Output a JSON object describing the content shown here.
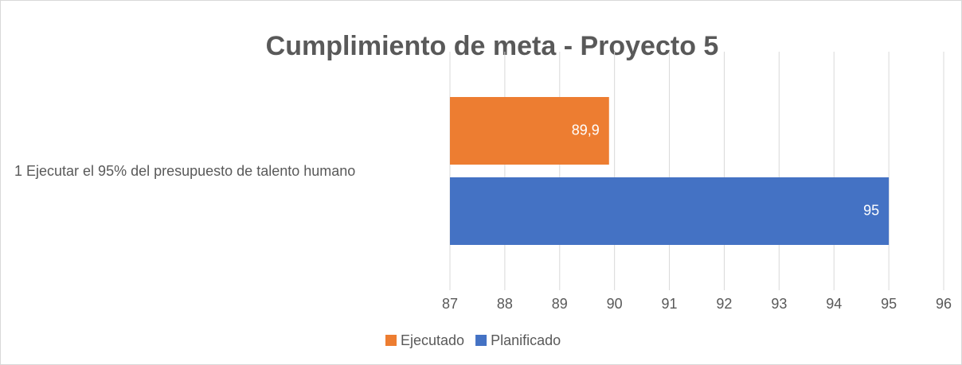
{
  "chart_data": {
    "type": "barh",
    "title": "Cumplimiento de meta - Proyecto 5",
    "categories": [
      "1 Ejecutar el 95% del presupuesto de talento humano"
    ],
    "series": [
      {
        "name": "Ejecutado",
        "color": "#ed7d31",
        "values": [
          89.9
        ],
        "value_labels": [
          "89,9"
        ]
      },
      {
        "name": "Planificado",
        "color": "#4472c4",
        "values": [
          95
        ],
        "value_labels": [
          "95"
        ]
      }
    ],
    "xlim": [
      87,
      96
    ],
    "xticks": [
      87,
      88,
      89,
      90,
      91,
      92,
      93,
      94,
      95,
      96
    ],
    "grid": true,
    "legend": "bottom"
  }
}
